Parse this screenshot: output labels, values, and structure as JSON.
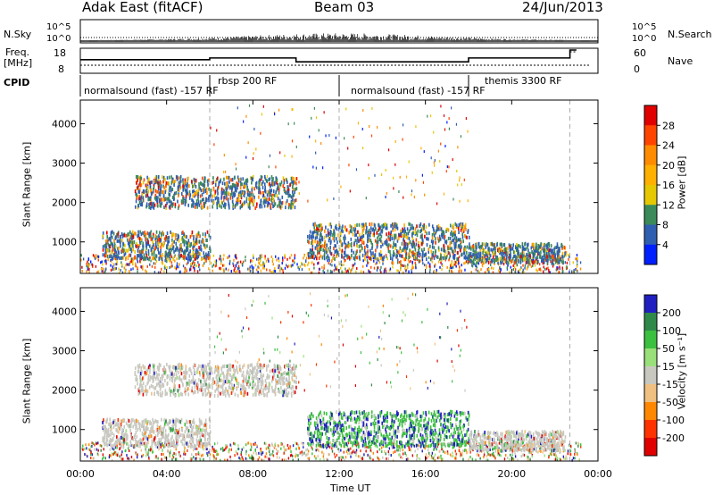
{
  "header": {
    "station": "Adak East (fitACF)",
    "beam": "Beam 03",
    "date": "24/Jun/2013"
  },
  "top_panels": {
    "nsky_label": "N.Sky",
    "nsky_ticks": [
      "10^5",
      "10^0"
    ],
    "nsearch_label": "N.Search",
    "nsearch_ticks": [
      "10^5",
      "10^0"
    ],
    "freq_label_1": "Freq.",
    "freq_label_2": "[MHz]",
    "freq_ticks": [
      "18",
      "8"
    ],
    "nave_label": "Nave",
    "nave_ticks": [
      "60",
      "0"
    ],
    "cpid_label": "CPID",
    "cpid_segments": [
      {
        "text": "normalsound (fast) -157 RF",
        "start_hour": 0
      },
      {
        "text": "rbsp 200 RF",
        "start_hour": 6
      },
      {
        "text": "normalsound (fast) -157 RF",
        "start_hour": 12
      },
      {
        "text": "themis 3300 RF",
        "start_hour": 18
      }
    ],
    "freq_steps": [
      {
        "from_hour": 0,
        "to_hour": 6,
        "mhz": 13.5
      },
      {
        "from_hour": 6,
        "to_hour": 10,
        "mhz": 14.3
      },
      {
        "from_hour": 10,
        "to_hour": 18,
        "mhz": 12.5
      },
      {
        "from_hour": 18,
        "to_hour": 22.7,
        "mhz": 14.3
      },
      {
        "from_hour": 22.7,
        "to_hour": 23,
        "mhz": 18
      }
    ]
  },
  "power_panel": {
    "ylabel": "Slant Range [km]",
    "cb_label": "Power [dB]",
    "cb_ticks": [
      "28",
      "24",
      "20",
      "16",
      "12",
      "8",
      "4"
    ],
    "cb_colors": [
      "#e00000",
      "#ff4400",
      "#ff8c00",
      "#ffb000",
      "#e6c800",
      "#3a8a5a",
      "#2f5fb0",
      "#0020ff"
    ]
  },
  "velocity_panel": {
    "ylabel": "Slant Range [km]",
    "cb_label": "Velocity [m s⁻¹]",
    "cb_ticks": [
      "200",
      "100",
      "50",
      "15",
      "-15",
      "-50",
      "-100",
      "-200"
    ],
    "cb_colors": [
      "#2020c0",
      "#2f8a4a",
      "#3cc040",
      "#9ae07a",
      "#c8c8c0",
      "#f0c080",
      "#ff8800",
      "#ff3300",
      "#e00000"
    ]
  },
  "axes": {
    "y_ticks": [
      "4000",
      "3000",
      "2000",
      "1000"
    ],
    "y_tick_values": [
      4000,
      3000,
      2000,
      1000
    ],
    "y_range": [
      200,
      4600
    ],
    "x_ticks": [
      "00:00",
      "04:00",
      "08:00",
      "12:00",
      "16:00",
      "20:00",
      "00:00"
    ],
    "x_tick_hours": [
      0,
      4,
      8,
      12,
      16,
      20,
      24
    ],
    "x_range_hours": [
      0,
      24
    ],
    "xlabel": "Time UT"
  },
  "chart_data": [
    {
      "type": "heatmap",
      "title": "",
      "xlabel": "Time UT",
      "ylabel": "Slant Range [km]",
      "xlim": [
        "00:00",
        "24:00"
      ],
      "ylim": [
        200,
        4600
      ],
      "colorbar": "Power [dB]",
      "colorbar_ticks": [
        4,
        8,
        12,
        16,
        20,
        24,
        28
      ],
      "bands": [
        {
          "from_hour": 2.5,
          "to_hour": 10,
          "range_from_km": 1900,
          "range_to_km": 2700
        },
        {
          "from_hour": 1,
          "to_hour": 6,
          "range_from_km": 600,
          "range_to_km": 1300
        },
        {
          "from_hour": 10.5,
          "to_hour": 18,
          "range_from_km": 600,
          "range_to_km": 1500
        },
        {
          "from_hour": 18,
          "to_hour": 22.5,
          "range_from_km": 500,
          "range_to_km": 1000
        }
      ]
    },
    {
      "type": "heatmap",
      "title": "",
      "xlabel": "Time UT",
      "ylabel": "Slant Range [km]",
      "xlim": [
        "00:00",
        "24:00"
      ],
      "ylim": [
        200,
        4600
      ],
      "colorbar": "Velocity [m s⁻¹]",
      "colorbar_ticks": [
        -200,
        -100,
        -50,
        -15,
        15,
        50,
        100,
        200
      ],
      "bands": [
        {
          "from_hour": 2.5,
          "to_hour": 10,
          "range_from_km": 1900,
          "range_to_km": 2700
        },
        {
          "from_hour": 1,
          "to_hour": 6,
          "range_from_km": 600,
          "range_to_km": 1300
        },
        {
          "from_hour": 10.5,
          "to_hour": 18,
          "range_from_km": 600,
          "range_to_km": 1500
        },
        {
          "from_hour": 18,
          "to_hour": 22.5,
          "range_from_km": 500,
          "range_to_km": 1000
        }
      ]
    }
  ]
}
